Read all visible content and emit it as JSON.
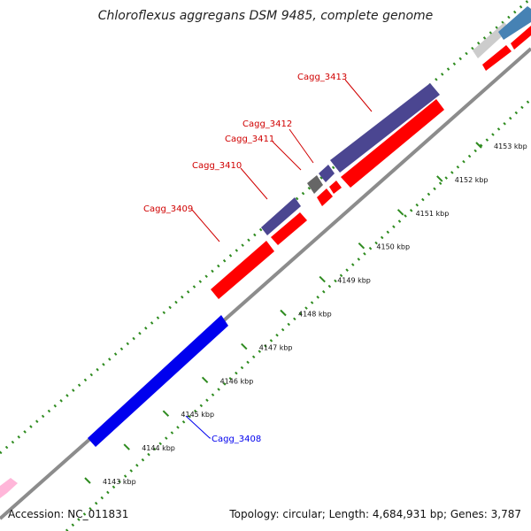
{
  "title": "Chloroflexus aggregans DSM 9485, complete genome",
  "footer": {
    "accession_label": "Accession: NC_011831",
    "topology_label": "Topology: circular; Length: 4,684,931 bp; Genes: 3,787"
  },
  "colors": {
    "backbone": "#8c8c8c",
    "dotted_rings": "#2e8b1f",
    "forward_genes": "#4b4691",
    "forward_label": "#d00000",
    "reverse_genes": "#ff0000",
    "highlight_gene": "#0000ee",
    "rna_gene": "#666666",
    "neighbor_gene_light": "#cccccc",
    "neighbor_gene_blue": "#4682b4",
    "neighbor_gene_pink": "#ffb6d9"
  },
  "scale_ticks": [
    {
      "label": "4143 kbp"
    },
    {
      "label": "4144 kbp"
    },
    {
      "label": "4145 kbp"
    },
    {
      "label": "4146 kbp"
    },
    {
      "label": "4147 kbp"
    },
    {
      "label": "4148 kbp"
    },
    {
      "label": "4149 kbp"
    },
    {
      "label": "4150 kbp"
    },
    {
      "label": "4151 kbp"
    },
    {
      "label": "4152 kbp"
    },
    {
      "label": "4153 kbp"
    }
  ],
  "genes": [
    {
      "id": "Cagg_3408",
      "label": "Cagg_3408",
      "strand": "reverse",
      "role": "highlighted"
    },
    {
      "id": "Cagg_3409",
      "label": "Cagg_3409",
      "strand": "reverse",
      "role": "labeled"
    },
    {
      "id": "Cagg_3410",
      "label": "Cagg_3410",
      "strand": "forward",
      "role": "labeled"
    },
    {
      "id": "Cagg_3411",
      "label": "Cagg_3411",
      "strand": "forward",
      "role": "rna"
    },
    {
      "id": "Cagg_3412",
      "label": "Cagg_3412",
      "strand": "forward",
      "role": "labeled"
    },
    {
      "id": "Cagg_3413",
      "label": "Cagg_3413",
      "strand": "forward",
      "role": "labeled"
    }
  ]
}
